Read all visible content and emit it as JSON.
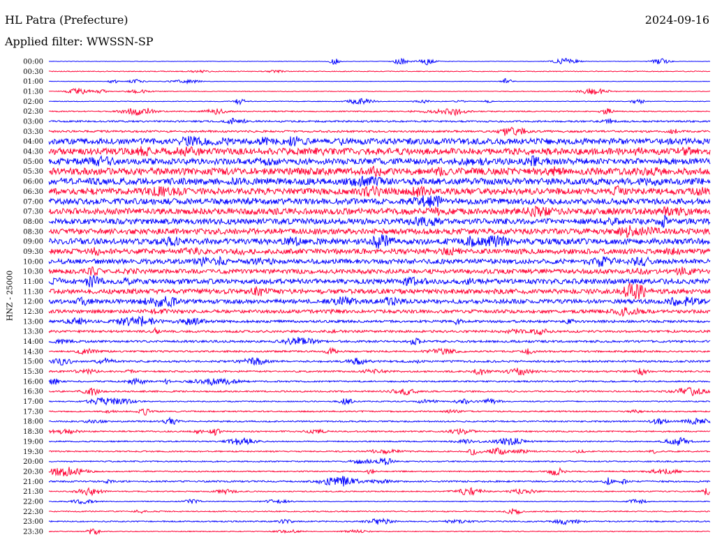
{
  "header": {
    "station": "HL Patra (Prefecture)",
    "date": "2024-09-16",
    "filter": "Applied filter: WWSSN-SP"
  },
  "chart_data": {
    "type": "line",
    "ylabel": "HNZ - 25000",
    "trace_colors": [
      "#0000ff",
      "#ff0033"
    ],
    "row_labels": [
      "00:00",
      "00:30",
      "01:00",
      "01:30",
      "02:00",
      "02:30",
      "03:00",
      "03:30",
      "04:00",
      "04:30",
      "05:00",
      "05:30",
      "06:00",
      "06:30",
      "07:00",
      "07:30",
      "08:00",
      "08:30",
      "09:00",
      "09:30",
      "10:00",
      "10:30",
      "11:00",
      "11:30",
      "12:00",
      "12:30",
      "13:00",
      "13:30",
      "14:00",
      "14:30",
      "15:00",
      "15:30",
      "16:00",
      "16:30",
      "17:00",
      "17:30",
      "18:00",
      "18:30",
      "19:00",
      "19:30",
      "20:00",
      "20:30",
      "21:00",
      "21:30",
      "22:00",
      "22:30",
      "23:00",
      "23:30"
    ],
    "noise_level": [
      0.3,
      0.6,
      0.3,
      0.5,
      0.5,
      0.8,
      1.2,
      1.4,
      4.2,
      4.6,
      4.4,
      4.8,
      4.6,
      4.4,
      4.2,
      4.4,
      4.0,
      4.0,
      4.2,
      3.6,
      3.4,
      3.2,
      3.6,
      3.4,
      3.0,
      2.4,
      1.8,
      1.6,
      1.5,
      1.3,
      1.4,
      1.2,
      1.1,
      1.1,
      0.8,
      1.0,
      1.0,
      1.0,
      0.9,
      0.9,
      0.9,
      0.9,
      1.1,
      0.8,
      0.6,
      0.8,
      0.9,
      0.6
    ]
  }
}
